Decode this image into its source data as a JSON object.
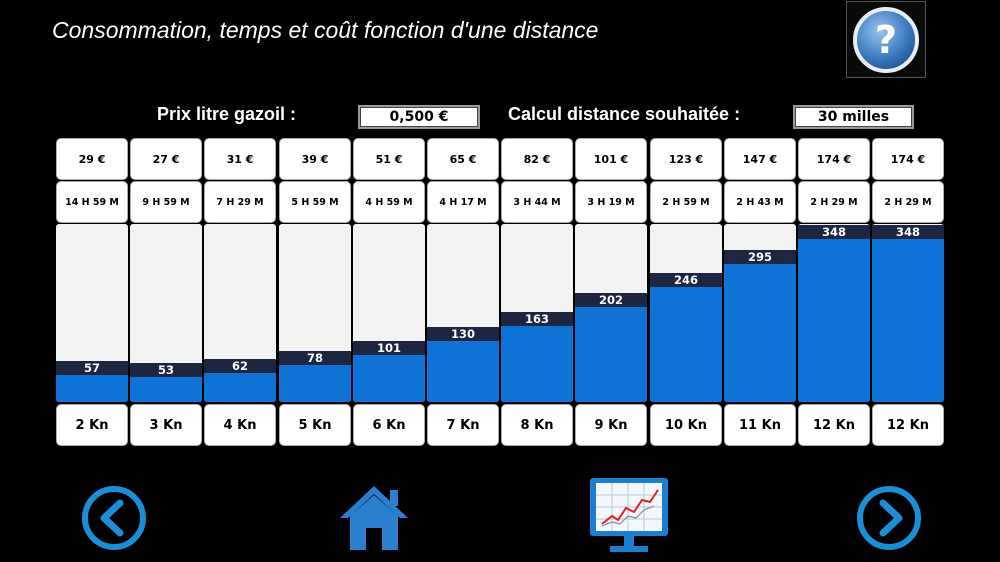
{
  "title": "Consommation, temps et coût fonction d'une distance",
  "inputs": {
    "prix_label": "Prix litre gazoil :",
    "prix_value": "0,500 €",
    "distance_label": "Calcul distance souhaitée :",
    "distance_value": "30 milles"
  },
  "columns": [
    {
      "cost": "29 €",
      "time": "14 H 59 M",
      "value": 57,
      "speed": "2 Kn"
    },
    {
      "cost": "27 €",
      "time": "9 H 59 M",
      "value": 53,
      "speed": "3 Kn"
    },
    {
      "cost": "31 €",
      "time": "7 H 29 M",
      "value": 62,
      "speed": "4 Kn"
    },
    {
      "cost": "39 €",
      "time": "5 H 59 M",
      "value": 78,
      "speed": "5 Kn"
    },
    {
      "cost": "51 €",
      "time": "4 H 59 M",
      "value": 101,
      "speed": "6 Kn"
    },
    {
      "cost": "65 €",
      "time": "4 H 17 M",
      "value": 130,
      "speed": "7 Kn"
    },
    {
      "cost": "82 €",
      "time": "3 H 44 M",
      "value": 163,
      "speed": "8 Kn"
    },
    {
      "cost": "101 €",
      "time": "3 H 19 M",
      "value": 202,
      "speed": "9 Kn"
    },
    {
      "cost": "123 €",
      "time": "2 H 59 M",
      "value": 246,
      "speed": "10 Kn"
    },
    {
      "cost": "147 €",
      "time": "2 H 43 M",
      "value": 295,
      "speed": "11 Kn"
    },
    {
      "cost": "174 €",
      "time": "2 H 29 M",
      "value": 348,
      "speed": "12 Kn"
    },
    {
      "cost": "174 €",
      "time": "2 H 29 M",
      "value": 348,
      "speed": "12 Kn"
    }
  ],
  "bar_scale_max": 380,
  "colors": {
    "bar": "#0f72d6",
    "bar_label_bg": "#1d2540",
    "accent": "#1a8fd8"
  },
  "icons": {
    "help": "question-icon",
    "prev": "chevron-left-icon",
    "home": "home-icon",
    "chart": "chart-monitor-icon",
    "next": "chevron-right-icon"
  }
}
